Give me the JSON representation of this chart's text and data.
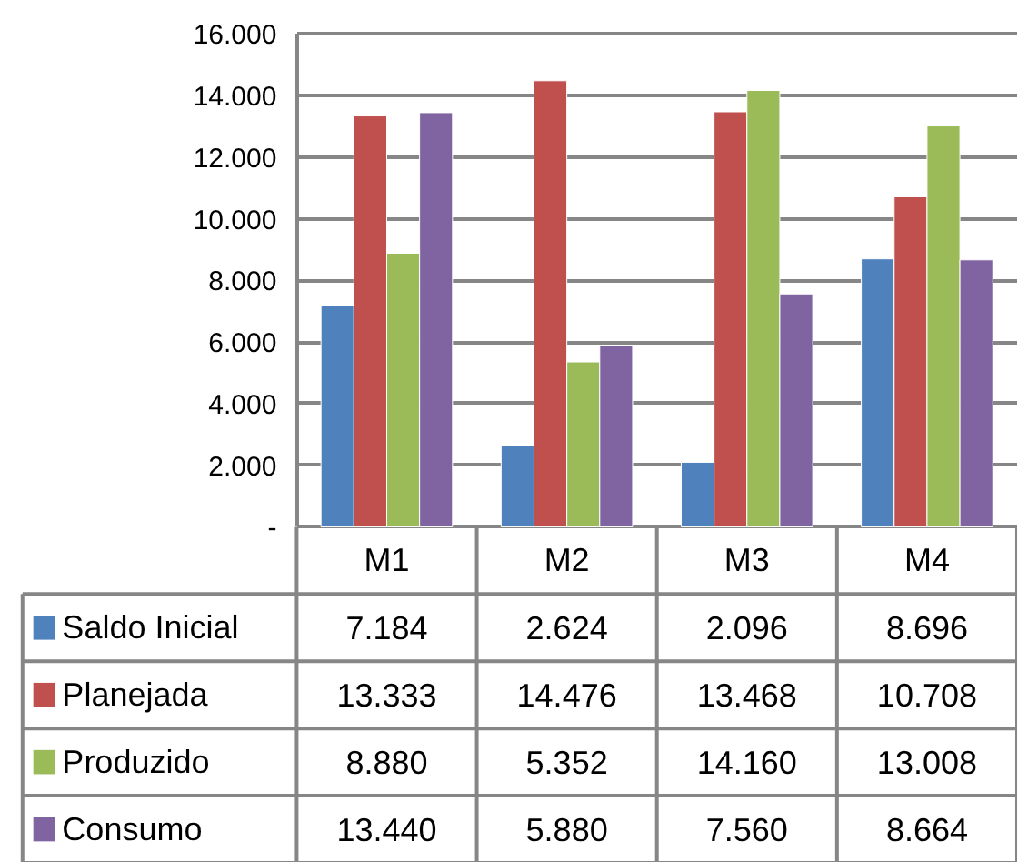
{
  "chart_data": {
    "type": "bar",
    "categories": [
      "M1",
      "M2",
      "M3",
      "M4"
    ],
    "series": [
      {
        "name": "Saldo Inicial",
        "color": "#4f81bd",
        "values": [
          7184,
          2624,
          2096,
          8696
        ],
        "value_labels": [
          "7.184",
          "2.624",
          "2.096",
          "8.696"
        ]
      },
      {
        "name": "Planejada",
        "color": "#c0504d",
        "values": [
          13333,
          14476,
          13468,
          10708
        ],
        "value_labels": [
          "13.333",
          "14.476",
          "13.468",
          "10.708"
        ]
      },
      {
        "name": "Produzido",
        "color": "#9bbb59",
        "values": [
          8880,
          5352,
          14160,
          13008
        ],
        "value_labels": [
          "8.880",
          "5.352",
          "14.160",
          "13.008"
        ]
      },
      {
        "name": "Consumo",
        "color": "#8064a2",
        "values": [
          13440,
          5880,
          7560,
          8664
        ],
        "value_labels": [
          "13.440",
          "5.880",
          "7.560",
          "8.664"
        ]
      }
    ],
    "ylim": [
      0,
      16000
    ],
    "yticks": [
      {
        "value": 0,
        "label": "-"
      },
      {
        "value": 2000,
        "label": "2.000"
      },
      {
        "value": 4000,
        "label": "4.000"
      },
      {
        "value": 6000,
        "label": "6.000"
      },
      {
        "value": 8000,
        "label": "8.000"
      },
      {
        "value": 10000,
        "label": "10.000"
      },
      {
        "value": 12000,
        "label": "12.000"
      },
      {
        "value": 14000,
        "label": "14.000"
      },
      {
        "value": 16000,
        "label": "16.000"
      }
    ],
    "grid": "y",
    "legend": "bottom"
  }
}
